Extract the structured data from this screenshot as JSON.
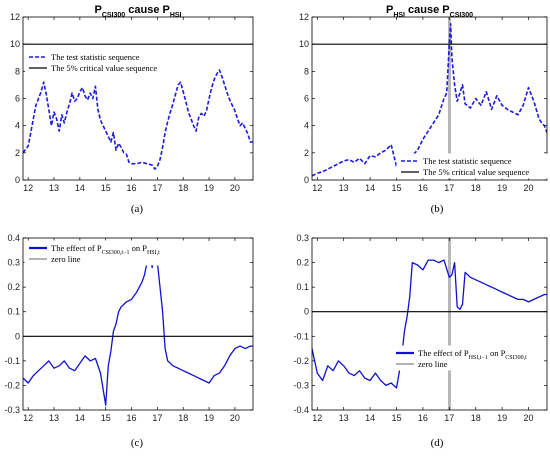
{
  "chart_data": [
    {
      "panel": "a",
      "type": "line",
      "title": {
        "parts": [
          {
            "t": "P",
            "sub": false
          },
          {
            "t": "CSI300",
            "sub": true
          },
          {
            "t": " cause P",
            "sub": false
          },
          {
            "t": "HSI",
            "sub": true
          }
        ]
      },
      "caption": "(a)",
      "xlim": [
        11.8,
        20.7
      ],
      "ylim": [
        0,
        12
      ],
      "xticks": [
        12,
        13,
        14,
        15,
        16,
        17,
        18,
        19,
        20
      ],
      "yticks": [
        0,
        2,
        4,
        6,
        8,
        10,
        12
      ],
      "grid": false,
      "legend_position": "top-left",
      "series": [
        {
          "name": "The test statistic sequence",
          "style": "dashed",
          "color": "#1a1ae0",
          "x": [
            11.8,
            12.0,
            12.1,
            12.2,
            12.3,
            12.4,
            12.5,
            12.6,
            12.7,
            12.8,
            12.9,
            13.0,
            13.1,
            13.2,
            13.3,
            13.4,
            13.5,
            13.6,
            13.7,
            13.8,
            13.9,
            14.0,
            14.1,
            14.2,
            14.3,
            14.4,
            14.5,
            14.6,
            14.7,
            14.8,
            14.9,
            15.0,
            15.1,
            15.2,
            15.3,
            15.4,
            15.5,
            15.6,
            15.7,
            15.8,
            15.9,
            16.0,
            16.2,
            16.4,
            16.6,
            16.8,
            16.9,
            17.0,
            17.1,
            17.2,
            17.3,
            17.4,
            17.5,
            17.6,
            17.7,
            17.8,
            17.9,
            18.0,
            18.1,
            18.2,
            18.3,
            18.4,
            18.5,
            18.6,
            18.7,
            18.8,
            18.9,
            19.0,
            19.1,
            19.2,
            19.3,
            19.4,
            19.5,
            19.6,
            19.7,
            19.8,
            19.9,
            20.0,
            20.1,
            20.2,
            20.3,
            20.4,
            20.5,
            20.6,
            20.7
          ],
          "y": [
            2.0,
            2.5,
            3.5,
            4.5,
            5.5,
            6.0,
            6.5,
            7.2,
            6.3,
            5.2,
            4.0,
            5.0,
            4.5,
            3.6,
            4.8,
            4.2,
            5.0,
            5.6,
            6.4,
            5.8,
            6.0,
            6.5,
            6.8,
            6.2,
            5.9,
            6.4,
            6.0,
            6.9,
            5.2,
            4.4,
            4.0,
            3.6,
            3.2,
            2.8,
            3.5,
            2.2,
            2.7,
            2.4,
            2.0,
            1.9,
            1.3,
            1.2,
            1.2,
            1.3,
            1.2,
            1.1,
            0.8,
            1.0,
            1.5,
            2.4,
            3.5,
            4.3,
            5.0,
            5.6,
            6.3,
            7.0,
            7.2,
            6.5,
            5.8,
            5.0,
            4.5,
            4.0,
            3.6,
            4.6,
            4.9,
            4.7,
            5.1,
            6.0,
            6.8,
            7.4,
            7.8,
            8.1,
            7.6,
            7.0,
            6.4,
            5.9,
            5.5,
            5.1,
            4.5,
            4.0,
            4.2,
            3.8,
            3.4,
            2.8,
            2.8
          ]
        },
        {
          "name": "The 5% critical value sequence",
          "style": "solid",
          "color": "#000000",
          "x": [
            11.8,
            20.7
          ],
          "y": [
            10,
            10
          ]
        }
      ]
    },
    {
      "panel": "b",
      "type": "line",
      "title": {
        "parts": [
          {
            "t": "P",
            "sub": false
          },
          {
            "t": "HSI",
            "sub": true
          },
          {
            "t": " cause P",
            "sub": false
          },
          {
            "t": "CSI300",
            "sub": true
          }
        ]
      },
      "caption": "(b)",
      "xlim": [
        11.8,
        20.7
      ],
      "ylim": [
        0,
        12
      ],
      "xticks": [
        12,
        13,
        14,
        15,
        16,
        17,
        18,
        19,
        20
      ],
      "yticks": [
        0,
        2,
        4,
        6,
        8,
        10,
        12
      ],
      "grid": false,
      "legend_position": "bottom-right",
      "shaded_x": [
        16.95,
        17.05
      ],
      "series": [
        {
          "name": "The test statistic sequence",
          "style": "dashed",
          "color": "#1a1ae0",
          "x": [
            11.8,
            12.0,
            12.2,
            12.4,
            12.6,
            12.8,
            13.0,
            13.2,
            13.4,
            13.6,
            13.8,
            14.0,
            14.2,
            14.4,
            14.6,
            14.8,
            15.0,
            15.2,
            15.4,
            15.6,
            15.8,
            16.0,
            16.2,
            16.4,
            16.6,
            16.8,
            16.9,
            17.0,
            17.05,
            17.1,
            17.2,
            17.3,
            17.4,
            17.5,
            17.6,
            17.8,
            18.0,
            18.2,
            18.4,
            18.6,
            18.8,
            19.0,
            19.2,
            19.4,
            19.6,
            19.8,
            20.0,
            20.2,
            20.4,
            20.5,
            20.6,
            20.7
          ],
          "y": [
            0.3,
            0.5,
            0.6,
            0.8,
            1.0,
            1.2,
            1.4,
            1.5,
            1.3,
            1.6,
            1.2,
            1.8,
            1.7,
            2.0,
            2.2,
            2.6,
            1.0,
            0.5,
            1.5,
            1.8,
            2.2,
            3.0,
            3.6,
            4.2,
            4.8,
            6.0,
            6.4,
            10.0,
            11.5,
            9.0,
            7.0,
            5.8,
            6.4,
            7.0,
            5.6,
            5.3,
            6.0,
            5.5,
            6.5,
            5.2,
            6.2,
            5.5,
            5.2,
            5.0,
            4.8,
            5.5,
            6.8,
            5.8,
            4.5,
            4.2,
            4.0,
            3.5
          ]
        },
        {
          "name": "The 5% critical value sequence",
          "style": "solid",
          "color": "#000000",
          "x": [
            11.8,
            20.7
          ],
          "y": [
            10,
            10
          ]
        }
      ]
    },
    {
      "panel": "c",
      "type": "line",
      "caption": "(c)",
      "xlim": [
        11.8,
        20.7
      ],
      "ylim": [
        -0.3,
        0.4
      ],
      "xticks": [
        12,
        13,
        14,
        15,
        16,
        17,
        18,
        19,
        20
      ],
      "yticks": [
        -0.3,
        -0.2,
        -0.1,
        0,
        0.1,
        0.2,
        0.3,
        0.4
      ],
      "grid": false,
      "legend_position": "top-left",
      "series": [
        {
          "name": {
            "parts": [
              {
                "t": "The effect of P",
                "sub": false
              },
              {
                "t": "CSI300,t−1",
                "sub": true
              },
              {
                "t": " on P",
                "sub": false
              },
              {
                "t": "HSI,t",
                "sub": true
              }
            ]
          },
          "style": "solid",
          "color": "#1010d0",
          "x": [
            11.8,
            12.0,
            12.2,
            12.4,
            12.6,
            12.8,
            13.0,
            13.2,
            13.4,
            13.6,
            13.8,
            14.0,
            14.2,
            14.4,
            14.6,
            14.8,
            15.0,
            15.1,
            15.2,
            15.3,
            15.4,
            15.5,
            15.6,
            15.8,
            16.0,
            16.2,
            16.4,
            16.5,
            16.6,
            16.7,
            16.8,
            16.9,
            17.0,
            17.1,
            17.2,
            17.3,
            17.4,
            17.6,
            17.8,
            18.0,
            18.2,
            18.4,
            18.6,
            18.8,
            19.0,
            19.2,
            19.4,
            19.6,
            19.8,
            20.0,
            20.2,
            20.4,
            20.6,
            20.7
          ],
          "y": [
            -0.17,
            -0.19,
            -0.16,
            -0.14,
            -0.12,
            -0.1,
            -0.13,
            -0.12,
            -0.1,
            -0.13,
            -0.14,
            -0.11,
            -0.08,
            -0.1,
            -0.09,
            -0.15,
            -0.28,
            -0.12,
            -0.06,
            0.02,
            0.05,
            0.1,
            0.12,
            0.14,
            0.15,
            0.18,
            0.22,
            0.25,
            0.3,
            0.32,
            0.28,
            0.33,
            0.3,
            0.2,
            0.1,
            -0.05,
            -0.1,
            -0.12,
            -0.13,
            -0.14,
            -0.15,
            -0.16,
            -0.17,
            -0.18,
            -0.19,
            -0.16,
            -0.15,
            -0.12,
            -0.08,
            -0.05,
            -0.04,
            -0.05,
            -0.04,
            -0.04
          ]
        },
        {
          "name": "zero line",
          "style": "solid",
          "color": "#000000",
          "x": [
            11.8,
            20.7
          ],
          "y": [
            0,
            0
          ]
        }
      ]
    },
    {
      "panel": "d",
      "type": "line",
      "caption": "(d)",
      "xlim": [
        11.8,
        20.7
      ],
      "ylim": [
        -0.4,
        0.3
      ],
      "xticks": [
        12,
        13,
        14,
        15,
        16,
        17,
        18,
        19,
        20
      ],
      "yticks": [
        -0.4,
        -0.3,
        -0.2,
        -0.1,
        0,
        0.1,
        0.2,
        0.3
      ],
      "grid": false,
      "legend_position": "bottom-left",
      "shaded_x": [
        16.95,
        17.05
      ],
      "series": [
        {
          "name": {
            "parts": [
              {
                "t": "The effect of P",
                "sub": false
              },
              {
                "t": "HSI,t−1",
                "sub": true
              },
              {
                "t": " on P",
                "sub": false
              },
              {
                "t": "CSI300,t",
                "sub": true
              }
            ]
          },
          "style": "solid",
          "color": "#1010d0",
          "x": [
            11.8,
            12.0,
            12.2,
            12.4,
            12.6,
            12.8,
            13.0,
            13.2,
            13.4,
            13.6,
            13.8,
            14.0,
            14.2,
            14.4,
            14.6,
            14.8,
            15.0,
            15.1,
            15.2,
            15.3,
            15.4,
            15.5,
            15.6,
            15.8,
            16.0,
            16.2,
            16.4,
            16.6,
            16.8,
            17.0,
            17.1,
            17.2,
            17.3,
            17.4,
            17.5,
            17.6,
            17.8,
            18.0,
            18.2,
            18.4,
            18.6,
            18.8,
            19.0,
            19.2,
            19.4,
            19.6,
            19.8,
            20.0,
            20.2,
            20.4,
            20.6,
            20.7
          ],
          "y": [
            -0.15,
            -0.25,
            -0.28,
            -0.22,
            -0.24,
            -0.2,
            -0.22,
            -0.25,
            -0.26,
            -0.24,
            -0.27,
            -0.28,
            -0.25,
            -0.28,
            -0.3,
            -0.29,
            -0.31,
            -0.25,
            -0.18,
            -0.08,
            -0.02,
            0.06,
            0.2,
            0.19,
            0.17,
            0.21,
            0.21,
            0.2,
            0.21,
            0.14,
            0.15,
            0.2,
            0.02,
            0.01,
            0.03,
            0.16,
            0.14,
            0.13,
            0.12,
            0.11,
            0.1,
            0.09,
            0.08,
            0.07,
            0.06,
            0.05,
            0.05,
            0.04,
            0.05,
            0.06,
            0.07,
            0.07
          ]
        },
        {
          "name": "zero line",
          "style": "solid",
          "color": "#000000",
          "x": [
            11.8,
            20.7
          ],
          "y": [
            0,
            0
          ]
        }
      ]
    }
  ]
}
